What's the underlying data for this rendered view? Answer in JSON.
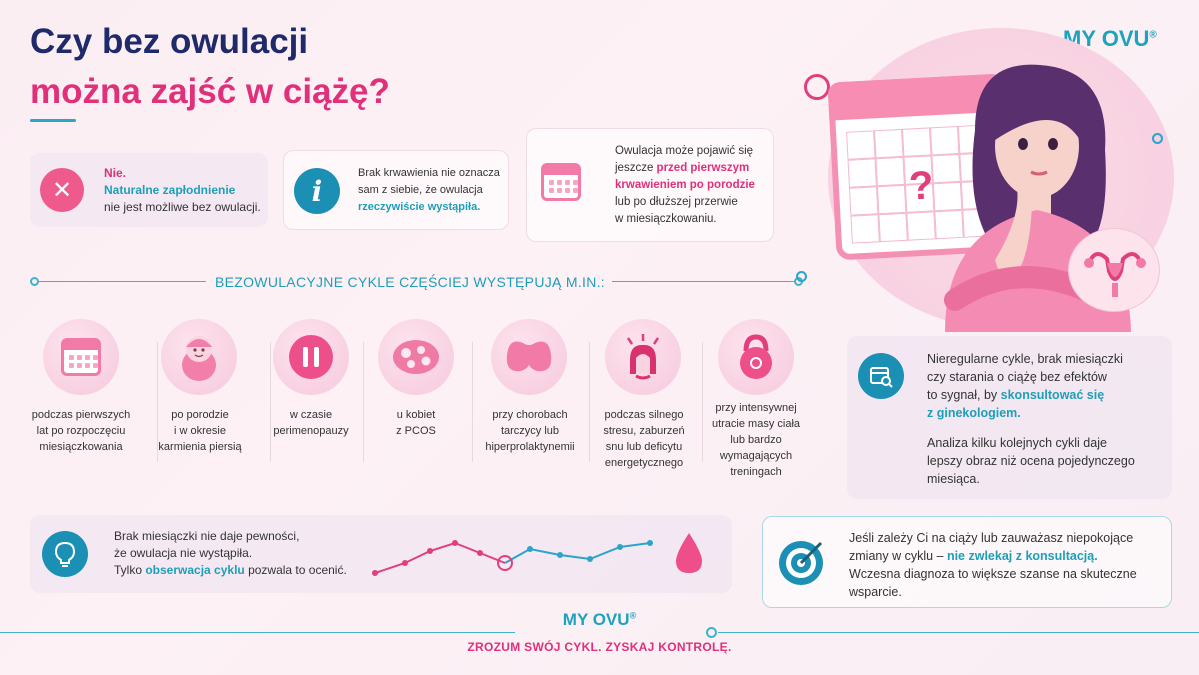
{
  "header": {
    "title_line1": "Czy bez owulacji",
    "title_line2": "można zajść w ciążę?",
    "brand": "MY OVU",
    "brand_mark": "®"
  },
  "cards": {
    "no": {
      "title": "Nie.",
      "highlight": "Naturalne zapłodnienie",
      "rest": "nie jest możliwe bez owulacji.",
      "icon": "x-icon"
    },
    "info": {
      "line1": "Brak krwawienia nie oznacza",
      "line2": "sam z siebie, że owulacja",
      "highlight": "rzeczywiście wystąpiła.",
      "icon": "info-icon"
    },
    "calendar": {
      "line1": "Owulacja może pojawić się",
      "line2_pre": "jeszcze ",
      "line2_hl": "przed pierwszym",
      "line3_hl": "krwawieniem po porodzie",
      "line4": "lub po dłuższej przerwie",
      "line5": "w miesiączkowaniu.",
      "icon": "calendar-icon"
    }
  },
  "section_title": "BEZOWULACYJNE CYKLE CZĘŚCIEJ WYSTĘPUJĄ M.IN.:",
  "causes": [
    {
      "lines": [
        "podczas pierwszych",
        "lat po rozpoczęciu",
        "miesiączkowania"
      ],
      "icon": "calendar-icon"
    },
    {
      "lines": [
        "po porodzie",
        "i w okresie",
        "karmienia piersią"
      ],
      "icon": "baby-icon"
    },
    {
      "lines": [
        "w czasie",
        "perimenopauzy"
      ],
      "icon": "pause-icon"
    },
    {
      "lines": [
        "u kobiet",
        "z PCOS"
      ],
      "icon": "ovary-cyst-icon"
    },
    {
      "lines": [
        "przy chorobach",
        "tarczycy lub",
        "hiperprolaktynemii"
      ],
      "icon": "thyroid-icon"
    },
    {
      "lines": [
        "podczas silnego",
        "stresu, zaburzeń",
        "snu lub deficytu",
        "energetycznego"
      ],
      "icon": "stress-icon"
    },
    {
      "lines": [
        "przy intensywnej",
        "utracie masy ciała",
        "lub bardzo",
        "wymagających",
        "treningach"
      ],
      "icon": "kettlebell-icon"
    }
  ],
  "right_panel": {
    "line1": "Nieregularne cykle, brak miesiączki",
    "line2": "czy starania o ciążę bez efektów",
    "line3_pre": "to sygnał, by ",
    "line3_hl": "skonsultować się",
    "line4_hl": "z ginekologiem.",
    "para2_line1": "Analiza kilku kolejnych cykli daje",
    "para2_line2": "lepszy obraz niż ocena pojedynczego",
    "para2_line3": "miesiąca.",
    "icon": "calendar-search-icon"
  },
  "bottom_left": {
    "line1": "Brak miesiączki nie daje pewności,",
    "line2": "że owulacja nie wystąpiła.",
    "line3_pre": "Tylko ",
    "line3_hl": "obserwacja cyklu",
    "line3_post": " pozwala to ocenić.",
    "icon": "lightbulb-icon",
    "drop_icon": "drop-icon"
  },
  "bottom_right": {
    "line1": "Jeśli zależy Ci na ciąży lub zauważasz niepokojące",
    "line2_pre": "zmiany w cyklu – ",
    "line2_hl": "nie zwlekaj z konsultacją.",
    "line3": "Wczesna diagnoza to większe szanse na skuteczne",
    "line4": "wsparcie.",
    "icon": "target-icon"
  },
  "footer": {
    "brand": "MY OVU",
    "brand_mark": "®",
    "tagline": "ZROZUM SWÓJ CYKL. ZYSKAJ KONTROLĘ."
  },
  "colors": {
    "navy": "#1f2a6b",
    "pink": "#e0307a",
    "teal": "#1ea3bd"
  }
}
